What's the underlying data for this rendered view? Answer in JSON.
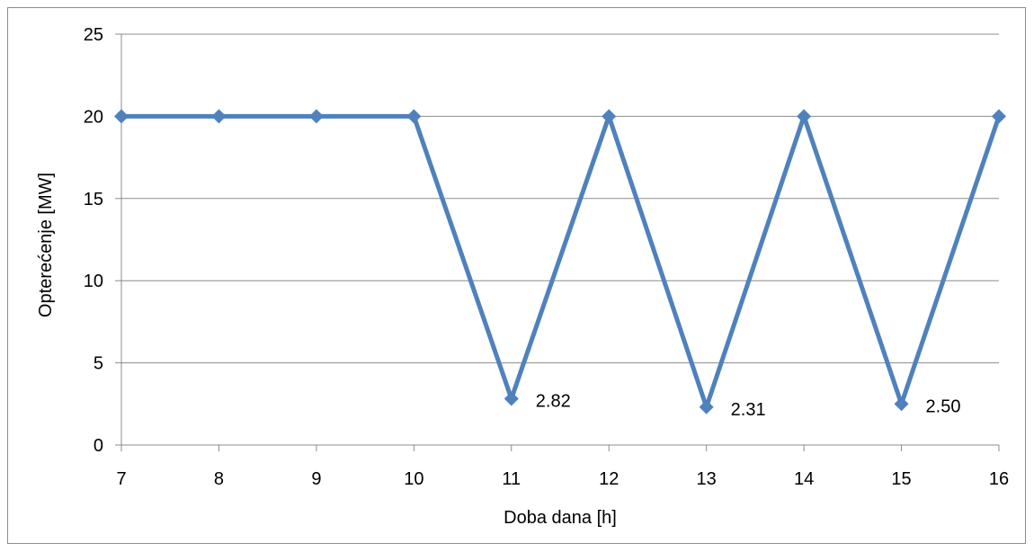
{
  "chart_data": {
    "type": "line",
    "title": "",
    "xlabel": "Doba dana [h]",
    "ylabel": "Opterećenje [MW]",
    "x": [
      7,
      8,
      9,
      10,
      11,
      12,
      13,
      14,
      15,
      16
    ],
    "x_tick_labels": [
      "7",
      "8",
      "9",
      "10",
      "11",
      "12",
      "13",
      "14",
      "15",
      "16"
    ],
    "y_tick_labels": [
      "0",
      "5",
      "10",
      "15",
      "20",
      "25"
    ],
    "y_ticks": [
      0,
      5,
      10,
      15,
      20,
      25
    ],
    "ylim": [
      0,
      25
    ],
    "xlim": [
      7,
      16
    ],
    "grid": "horizontal",
    "legend": "none",
    "series": [
      {
        "values": [
          20,
          20,
          20,
          20,
          2.82,
          20,
          2.31,
          20,
          2.5,
          20
        ],
        "color": "#4f81bd",
        "marker": "diamond"
      }
    ],
    "data_labels": [
      {
        "x": 11,
        "y": 2.82,
        "text": "2.82"
      },
      {
        "x": 13,
        "y": 2.31,
        "text": "2.31"
      },
      {
        "x": 15,
        "y": 2.5,
        "text": "2.50"
      }
    ]
  }
}
